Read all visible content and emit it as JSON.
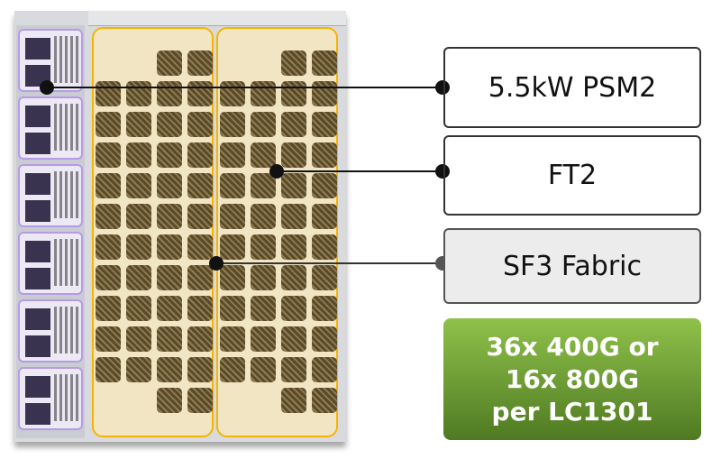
{
  "callouts": [
    {
      "label": "5.5kW PSM2"
    },
    {
      "label": "FT2"
    },
    {
      "label": "SF3 Fabric"
    }
  ],
  "capacity": {
    "lines": [
      "36x 400G or",
      "16x 800G",
      "per LC1301"
    ],
    "colors": {
      "top": "#8fc14a",
      "bottom": "#4f7a22"
    }
  },
  "colors": {
    "fan_tray_border": "#f4b400",
    "psu_border": "#b69be6",
    "sf3_box_fill": "#ececec"
  }
}
